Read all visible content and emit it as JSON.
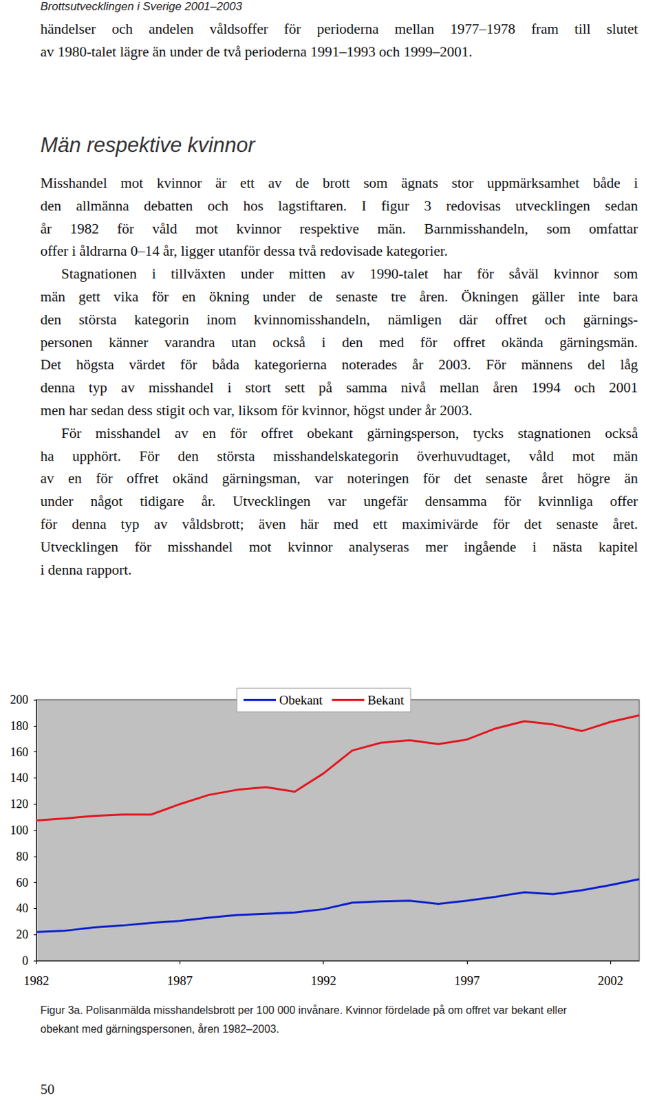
{
  "header": "Brottsutvecklingen i Sverige 2001–2003",
  "intro": [
    "händelser och andelen våldsoffer för perioderna mellan 1977–1978 fram till slutet",
    "av 1980-talet lägre än under de två perioderna 1991–1993 och 1999–2001."
  ],
  "heading": "Män respektive kvinnor",
  "paragraphs": [
    [
      "Misshandel mot kvinnor är ett av de brott som ägnats stor uppmärksamhet både i",
      "den allmänna debatten och hos lagstiftaren. I figur 3 redovisas utvecklingen sedan",
      "år 1982 för våld mot kvinnor respektive män. Barnmisshandeln, som omfattar",
      "offer i åldrarna 0–14 år, ligger utanför dessa två redovisade kategorier."
    ],
    [
      "Stagnationen i tillväxten under mitten av 1990-talet har för såväl kvinnor som",
      "män gett vika för en ökning under de senaste tre åren. Ökningen gäller inte bara",
      "den största kategorin inom kvinnomisshandeln, nämligen där offret och gärnings-",
      "personen känner varandra utan också i den med för offret okända gärningsmän.",
      "Det högsta värdet för båda kategorierna noterades år 2003. För männens del låg",
      "denna typ av misshandel i stort sett på samma nivå mellan åren 1994 och 2001",
      "men har sedan dess stigit och var, liksom för kvinnor, högst under år 2003."
    ],
    [
      "För misshandel av en för offret obekant gärningsperson, tycks stagnationen också",
      "ha upphört. För den största misshandelskategorin överhuvudtaget, våld mot män",
      "av en för offret okänd gärningsman, var noteringen för det senaste året högre än",
      "under något tidigare år. Utvecklingen var ungefär densamma för kvinnliga offer",
      "för denna typ av våldsbrott; även här med ett maximivärde för det senaste året.",
      "Utvecklingen för misshandel mot kvinnor analyseras mer ingående i nästa kapitel",
      "i denna rapport."
    ]
  ],
  "chart_data": {
    "type": "line",
    "x": [
      1982,
      1983,
      1984,
      1985,
      1986,
      1987,
      1988,
      1989,
      1990,
      1991,
      1992,
      1993,
      1994,
      1995,
      1996,
      1997,
      1998,
      1999,
      2000,
      2001,
      2002,
      2003
    ],
    "series": [
      {
        "name": "Obekant",
        "color": "#0a1fd0",
        "values": [
          22,
          23,
          25.5,
          27,
          29,
          30.5,
          33,
          35,
          36,
          37,
          39.5,
          44.5,
          45.5,
          46,
          43.5,
          46,
          49,
          52.5,
          51,
          54,
          58,
          62.5
        ]
      },
      {
        "name": "Bekant",
        "color": "#e3161e",
        "values": [
          107.5,
          109,
          111,
          112,
          112,
          120,
          127,
          131,
          133,
          129.5,
          143.5,
          161,
          167,
          169,
          166,
          169.5,
          178,
          183.5,
          181,
          176,
          183,
          188
        ]
      }
    ],
    "xlim": [
      1982,
      2003
    ],
    "xticks": [
      1982,
      1987,
      1992,
      1997,
      2002
    ],
    "ylim": [
      0,
      200
    ],
    "yticks": [
      0,
      20,
      40,
      60,
      80,
      100,
      120,
      140,
      160,
      180,
      200
    ],
    "legend": "top",
    "grid": false
  },
  "caption": [
    "Figur 3a. Polisanmälda misshandelsbrott per 100 000 invånare. Kvinnor fördelade på om offret var bekant eller",
    "obekant med gärningspersonen, åren 1982–2003."
  ],
  "page_number": "50"
}
